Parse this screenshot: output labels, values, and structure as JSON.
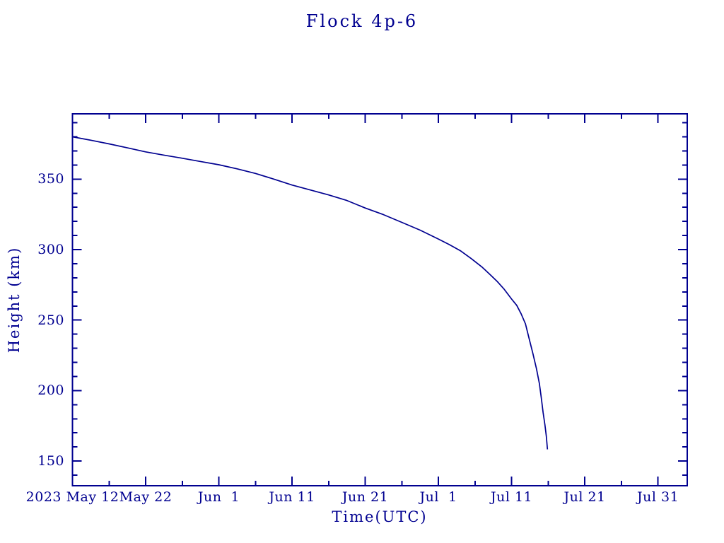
{
  "title": "Flock 4p-6",
  "colors": {
    "ink": "#000090",
    "background": "#ffffff",
    "curve": "#000090"
  },
  "chart_data": {
    "type": "line",
    "title": "Flock 4p-6",
    "xlabel": "Time(UTC)",
    "ylabel": "Height (km)",
    "x_unit": "days since 2023-05-12 (UTC)",
    "xlim": [
      0,
      84
    ],
    "ylim": [
      132.5,
      396.3
    ],
    "grid": false,
    "legend": "none",
    "tick_style": "inward, mirrored on all four sides",
    "x_major_ticks": [
      {
        "day": 0,
        "label": "2023 May 12"
      },
      {
        "day": 10,
        "label": "May 22"
      },
      {
        "day": 20,
        "label": "Jun  1"
      },
      {
        "day": 30,
        "label": "Jun 11"
      },
      {
        "day": 40,
        "label": "Jun 21"
      },
      {
        "day": 50,
        "label": "Jul  1"
      },
      {
        "day": 60,
        "label": "Jul 11"
      },
      {
        "day": 70,
        "label": "Jul 21"
      },
      {
        "day": 80,
        "label": "Jul 31"
      }
    ],
    "x_minor_step_days": 5,
    "y_major_ticks": [
      150,
      200,
      250,
      300,
      350
    ],
    "y_minor_step_km": 10,
    "series": [
      {
        "name": "Flock 4p-6 height",
        "color": "#000090",
        "points": [
          [
            0,
            380
          ],
          [
            2.5,
            377.6
          ],
          [
            5,
            375
          ],
          [
            7.5,
            372.2
          ],
          [
            10,
            369.3
          ],
          [
            12.5,
            367
          ],
          [
            15,
            364.8
          ],
          [
            17.5,
            362.5
          ],
          [
            20,
            360.2
          ],
          [
            22.5,
            357.3
          ],
          [
            25,
            354
          ],
          [
            27.5,
            350
          ],
          [
            30,
            345.8
          ],
          [
            32.5,
            342.3
          ],
          [
            35,
            338.8
          ],
          [
            37.5,
            334.8
          ],
          [
            40,
            329.5
          ],
          [
            42.5,
            324.8
          ],
          [
            45,
            319.3
          ],
          [
            47.5,
            313.8
          ],
          [
            50,
            307.5
          ],
          [
            51.5,
            303.5
          ],
          [
            53,
            299.2
          ],
          [
            54.5,
            293.6
          ],
          [
            56,
            287.4
          ],
          [
            57,
            282.6
          ],
          [
            58,
            277.6
          ],
          [
            59,
            271.8
          ],
          [
            60,
            264.9
          ],
          [
            60.7,
            260.5
          ],
          [
            61.3,
            254.5
          ],
          [
            61.9,
            247.3
          ],
          [
            62.4,
            236.8
          ],
          [
            62.9,
            226.5
          ],
          [
            63.4,
            215.4
          ],
          [
            63.8,
            204.9
          ],
          [
            64.05,
            195.2
          ],
          [
            64.3,
            184.6
          ],
          [
            64.55,
            175.8
          ],
          [
            64.75,
            167.6
          ],
          [
            64.9,
            158.3
          ]
        ]
      }
    ]
  }
}
